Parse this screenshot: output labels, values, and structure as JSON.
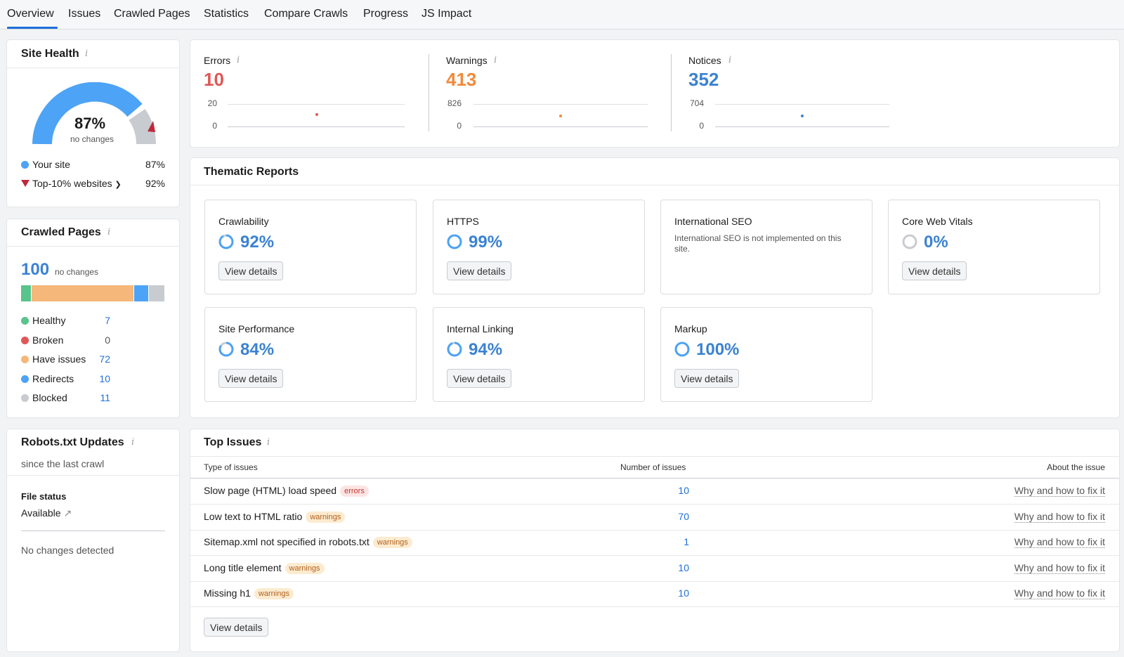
{
  "tabs": [
    "Overview",
    "Issues",
    "Crawled Pages",
    "Statistics",
    "Compare Crawls",
    "Progress",
    "JS Impact"
  ],
  "site_health": {
    "title": "Site Health",
    "percent": "87%",
    "note": "no changes",
    "your_site_label": "Your site",
    "your_site_value": "87%",
    "top_label": "Top-10% websites",
    "top_value": "92%",
    "colors": {
      "your_site": "#4da3f5",
      "top": "#c0273a",
      "gauge_rest": "#c8cbd0"
    }
  },
  "crawled_pages": {
    "title": "Crawled Pages",
    "total": "100",
    "note": "no changes",
    "items": [
      {
        "label": "Healthy",
        "value": "7",
        "color": "#59c48b",
        "share": 7
      },
      {
        "label": "Broken",
        "value": "0",
        "color": "#e05757",
        "share": 0
      },
      {
        "label": "Have issues",
        "value": "72",
        "color": "#f5b77a",
        "share": 72
      },
      {
        "label": "Redirects",
        "value": "10",
        "color": "#4da3f5",
        "share": 10
      },
      {
        "label": "Blocked",
        "value": "11",
        "color": "#c8cbd0",
        "share": 11
      }
    ]
  },
  "robots": {
    "title": "Robots.txt Updates",
    "subtitle": "since the last crawl",
    "file_status_label": "File status",
    "file_status_value": "Available",
    "changes": "No changes detected"
  },
  "summary": {
    "errors": {
      "label": "Errors",
      "value": "10",
      "axis_max": "20",
      "axis_min": "0",
      "color": "#e05757"
    },
    "warnings": {
      "label": "Warnings",
      "value": "413",
      "axis_max": "826",
      "axis_min": "0",
      "color": "#f08a3c"
    },
    "notices": {
      "label": "Notices",
      "value": "352",
      "axis_max": "704",
      "axis_min": "0",
      "color": "#3b82d1"
    }
  },
  "thematic": {
    "title": "Thematic Reports",
    "view_details": "View details",
    "reports": [
      {
        "name": "Crawlability",
        "pct": "92%",
        "value": 92
      },
      {
        "name": "HTTPS",
        "pct": "99%",
        "value": 99
      },
      {
        "name": "International SEO",
        "desc": "International SEO is not implemented on this site."
      },
      {
        "name": "Core Web Vitals",
        "pct": "0%",
        "value": 0
      },
      {
        "name": "Site Performance",
        "pct": "84%",
        "value": 84
      },
      {
        "name": "Internal Linking",
        "pct": "94%",
        "value": 94
      },
      {
        "name": "Markup",
        "pct": "100%",
        "value": 100
      }
    ]
  },
  "top_issues": {
    "title": "Top Issues",
    "col_type": "Type of issues",
    "col_count": "Number of issues",
    "col_about": "About the issue",
    "link_text": "Why and how to fix it",
    "view_details": "View details",
    "rows": [
      {
        "name": "Slow page (HTML) load speed",
        "badge": "errors",
        "count": "10"
      },
      {
        "name": "Low text to HTML ratio",
        "badge": "warnings",
        "count": "70"
      },
      {
        "name": "Sitemap.xml not specified in robots.txt",
        "badge": "warnings",
        "count": "1"
      },
      {
        "name": "Long title element",
        "badge": "warnings",
        "count": "10"
      },
      {
        "name": "Missing h1",
        "badge": "warnings",
        "count": "10"
      }
    ]
  }
}
